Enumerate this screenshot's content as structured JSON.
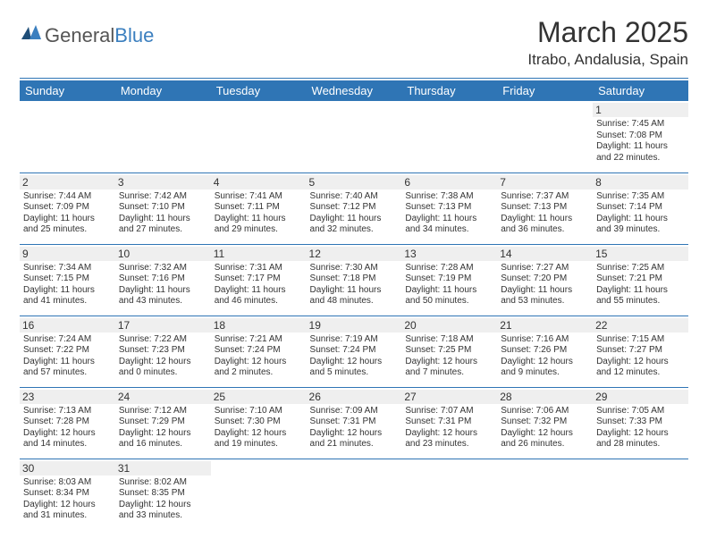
{
  "brand": {
    "general": "General",
    "blue": "Blue"
  },
  "title": "March 2025",
  "location": "Itrabo, Andalusia, Spain",
  "colors": {
    "header_bg": "#2f75b5",
    "header_text": "#ffffff",
    "rule": "#2f75b5",
    "daynum_bg": "#efefef",
    "text": "#333333"
  },
  "typography": {
    "title_fontsize": 32,
    "location_fontsize": 17,
    "weekday_fontsize": 13,
    "daynum_fontsize": 12,
    "body_fontsize": 10
  },
  "weekdays": [
    "Sunday",
    "Monday",
    "Tuesday",
    "Wednesday",
    "Thursday",
    "Friday",
    "Saturday"
  ],
  "weeks": [
    [
      null,
      null,
      null,
      null,
      null,
      null,
      {
        "n": "1",
        "sunrise": "Sunrise: 7:45 AM",
        "sunset": "Sunset: 7:08 PM",
        "dl1": "Daylight: 11 hours",
        "dl2": "and 22 minutes."
      }
    ],
    [
      {
        "n": "2",
        "sunrise": "Sunrise: 7:44 AM",
        "sunset": "Sunset: 7:09 PM",
        "dl1": "Daylight: 11 hours",
        "dl2": "and 25 minutes."
      },
      {
        "n": "3",
        "sunrise": "Sunrise: 7:42 AM",
        "sunset": "Sunset: 7:10 PM",
        "dl1": "Daylight: 11 hours",
        "dl2": "and 27 minutes."
      },
      {
        "n": "4",
        "sunrise": "Sunrise: 7:41 AM",
        "sunset": "Sunset: 7:11 PM",
        "dl1": "Daylight: 11 hours",
        "dl2": "and 29 minutes."
      },
      {
        "n": "5",
        "sunrise": "Sunrise: 7:40 AM",
        "sunset": "Sunset: 7:12 PM",
        "dl1": "Daylight: 11 hours",
        "dl2": "and 32 minutes."
      },
      {
        "n": "6",
        "sunrise": "Sunrise: 7:38 AM",
        "sunset": "Sunset: 7:13 PM",
        "dl1": "Daylight: 11 hours",
        "dl2": "and 34 minutes."
      },
      {
        "n": "7",
        "sunrise": "Sunrise: 7:37 AM",
        "sunset": "Sunset: 7:13 PM",
        "dl1": "Daylight: 11 hours",
        "dl2": "and 36 minutes."
      },
      {
        "n": "8",
        "sunrise": "Sunrise: 7:35 AM",
        "sunset": "Sunset: 7:14 PM",
        "dl1": "Daylight: 11 hours",
        "dl2": "and 39 minutes."
      }
    ],
    [
      {
        "n": "9",
        "sunrise": "Sunrise: 7:34 AM",
        "sunset": "Sunset: 7:15 PM",
        "dl1": "Daylight: 11 hours",
        "dl2": "and 41 minutes."
      },
      {
        "n": "10",
        "sunrise": "Sunrise: 7:32 AM",
        "sunset": "Sunset: 7:16 PM",
        "dl1": "Daylight: 11 hours",
        "dl2": "and 43 minutes."
      },
      {
        "n": "11",
        "sunrise": "Sunrise: 7:31 AM",
        "sunset": "Sunset: 7:17 PM",
        "dl1": "Daylight: 11 hours",
        "dl2": "and 46 minutes."
      },
      {
        "n": "12",
        "sunrise": "Sunrise: 7:30 AM",
        "sunset": "Sunset: 7:18 PM",
        "dl1": "Daylight: 11 hours",
        "dl2": "and 48 minutes."
      },
      {
        "n": "13",
        "sunrise": "Sunrise: 7:28 AM",
        "sunset": "Sunset: 7:19 PM",
        "dl1": "Daylight: 11 hours",
        "dl2": "and 50 minutes."
      },
      {
        "n": "14",
        "sunrise": "Sunrise: 7:27 AM",
        "sunset": "Sunset: 7:20 PM",
        "dl1": "Daylight: 11 hours",
        "dl2": "and 53 minutes."
      },
      {
        "n": "15",
        "sunrise": "Sunrise: 7:25 AM",
        "sunset": "Sunset: 7:21 PM",
        "dl1": "Daylight: 11 hours",
        "dl2": "and 55 minutes."
      }
    ],
    [
      {
        "n": "16",
        "sunrise": "Sunrise: 7:24 AM",
        "sunset": "Sunset: 7:22 PM",
        "dl1": "Daylight: 11 hours",
        "dl2": "and 57 minutes."
      },
      {
        "n": "17",
        "sunrise": "Sunrise: 7:22 AM",
        "sunset": "Sunset: 7:23 PM",
        "dl1": "Daylight: 12 hours",
        "dl2": "and 0 minutes."
      },
      {
        "n": "18",
        "sunrise": "Sunrise: 7:21 AM",
        "sunset": "Sunset: 7:24 PM",
        "dl1": "Daylight: 12 hours",
        "dl2": "and 2 minutes."
      },
      {
        "n": "19",
        "sunrise": "Sunrise: 7:19 AM",
        "sunset": "Sunset: 7:24 PM",
        "dl1": "Daylight: 12 hours",
        "dl2": "and 5 minutes."
      },
      {
        "n": "20",
        "sunrise": "Sunrise: 7:18 AM",
        "sunset": "Sunset: 7:25 PM",
        "dl1": "Daylight: 12 hours",
        "dl2": "and 7 minutes."
      },
      {
        "n": "21",
        "sunrise": "Sunrise: 7:16 AM",
        "sunset": "Sunset: 7:26 PM",
        "dl1": "Daylight: 12 hours",
        "dl2": "and 9 minutes."
      },
      {
        "n": "22",
        "sunrise": "Sunrise: 7:15 AM",
        "sunset": "Sunset: 7:27 PM",
        "dl1": "Daylight: 12 hours",
        "dl2": "and 12 minutes."
      }
    ],
    [
      {
        "n": "23",
        "sunrise": "Sunrise: 7:13 AM",
        "sunset": "Sunset: 7:28 PM",
        "dl1": "Daylight: 12 hours",
        "dl2": "and 14 minutes."
      },
      {
        "n": "24",
        "sunrise": "Sunrise: 7:12 AM",
        "sunset": "Sunset: 7:29 PM",
        "dl1": "Daylight: 12 hours",
        "dl2": "and 16 minutes."
      },
      {
        "n": "25",
        "sunrise": "Sunrise: 7:10 AM",
        "sunset": "Sunset: 7:30 PM",
        "dl1": "Daylight: 12 hours",
        "dl2": "and 19 minutes."
      },
      {
        "n": "26",
        "sunrise": "Sunrise: 7:09 AM",
        "sunset": "Sunset: 7:31 PM",
        "dl1": "Daylight: 12 hours",
        "dl2": "and 21 minutes."
      },
      {
        "n": "27",
        "sunrise": "Sunrise: 7:07 AM",
        "sunset": "Sunset: 7:31 PM",
        "dl1": "Daylight: 12 hours",
        "dl2": "and 23 minutes."
      },
      {
        "n": "28",
        "sunrise": "Sunrise: 7:06 AM",
        "sunset": "Sunset: 7:32 PM",
        "dl1": "Daylight: 12 hours",
        "dl2": "and 26 minutes."
      },
      {
        "n": "29",
        "sunrise": "Sunrise: 7:05 AM",
        "sunset": "Sunset: 7:33 PM",
        "dl1": "Daylight: 12 hours",
        "dl2": "and 28 minutes."
      }
    ],
    [
      {
        "n": "30",
        "sunrise": "Sunrise: 8:03 AM",
        "sunset": "Sunset: 8:34 PM",
        "dl1": "Daylight: 12 hours",
        "dl2": "and 31 minutes."
      },
      {
        "n": "31",
        "sunrise": "Sunrise: 8:02 AM",
        "sunset": "Sunset: 8:35 PM",
        "dl1": "Daylight: 12 hours",
        "dl2": "and 33 minutes."
      },
      null,
      null,
      null,
      null,
      null
    ]
  ]
}
